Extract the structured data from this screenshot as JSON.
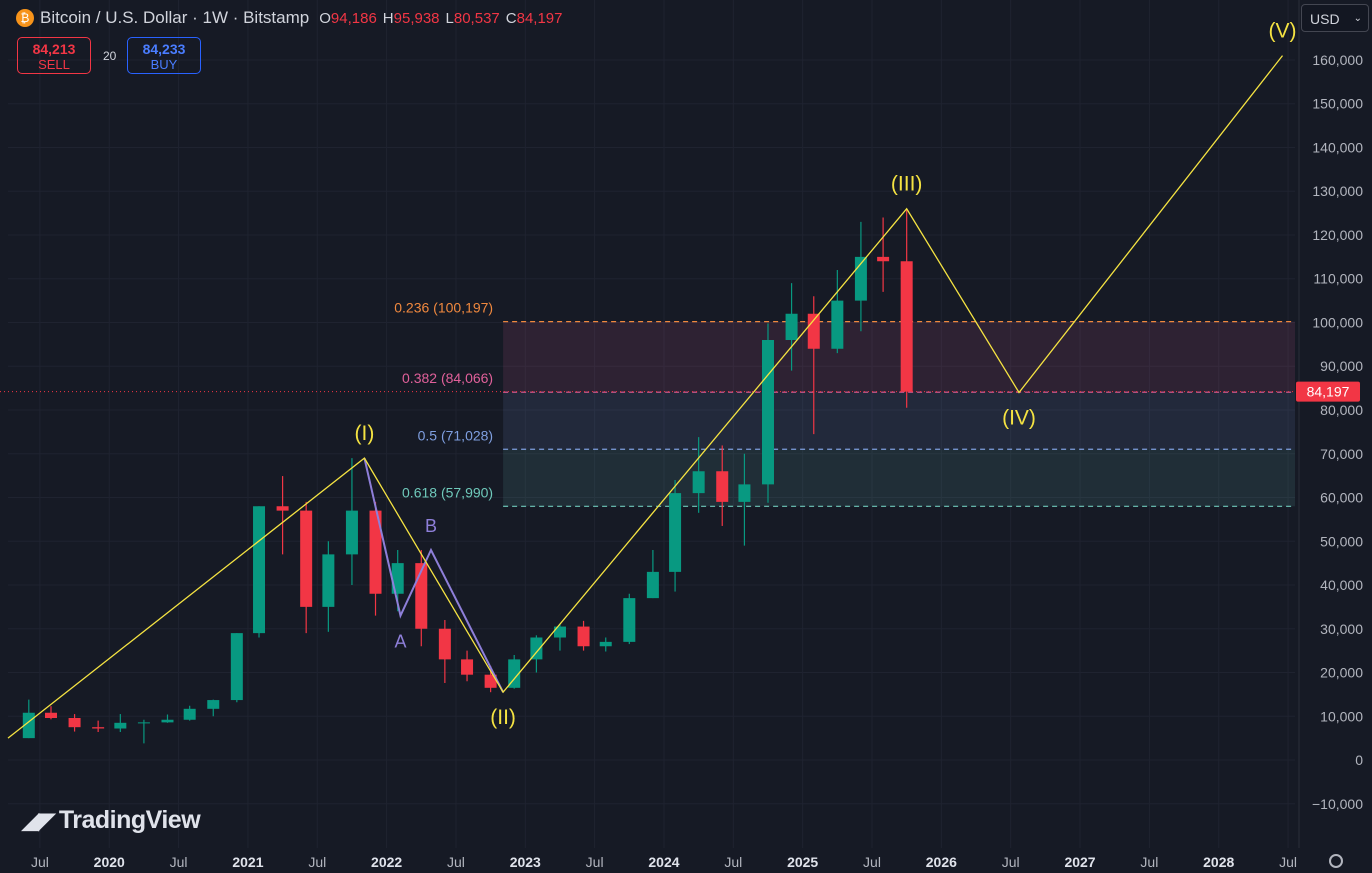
{
  "chart_data": {
    "type": "candlestick",
    "title": "Bitcoin / U.S. Dollar · 1W · Bitstamp",
    "ohlc": [
      {
        "label": "O",
        "value": "94,186"
      },
      {
        "label": "H",
        "value": "95,938"
      },
      {
        "label": "L",
        "value": "80,537"
      },
      {
        "label": "C",
        "value": "84,197"
      }
    ],
    "sell": {
      "price": "84,213",
      "label": "SELL"
    },
    "spread": "20",
    "buy": {
      "price": "84,233",
      "label": "BUY"
    },
    "currency": "USD",
    "brand": "TradingView",
    "up_color": "#089981",
    "down_color": "#f23645",
    "xlim": [
      2019.27,
      2028.55
    ],
    "ylim": [
      -20114,
      173714
    ],
    "xticks": [
      {
        "value": 2019.5,
        "label": "Jul"
      },
      2020,
      {
        "value": 2020.5,
        "label": "Jul"
      },
      2021,
      {
        "value": 2021.5,
        "label": "Jul"
      },
      2022,
      {
        "value": 2022.5,
        "label": "Jul"
      },
      2023,
      {
        "value": 2023.5,
        "label": "Jul"
      },
      2024,
      {
        "value": 2024.5,
        "label": "Jul"
      },
      2025,
      {
        "value": 2025.5,
        "label": "Jul"
      },
      2026,
      {
        "value": 2026.5,
        "label": "Jul"
      },
      2027,
      {
        "value": 2027.5,
        "label": "Jul"
      },
      2028,
      {
        "value": 2028.5,
        "label": "Jul"
      }
    ],
    "yticks": [
      {
        "value": -10000,
        "label": "−10,000"
      },
      0,
      {
        "value": 10000,
        "label": "10,000"
      },
      {
        "value": 20000,
        "label": "20,000"
      },
      {
        "value": 30000,
        "label": "30,000"
      },
      {
        "value": 40000,
        "label": "40,000"
      },
      {
        "value": 50000,
        "label": "50,000"
      },
      {
        "value": 60000,
        "label": "60,000"
      },
      {
        "value": 70000,
        "label": "70,000"
      },
      {
        "value": 80000,
        "label": "80,000"
      },
      {
        "value": 90000,
        "label": "90,000"
      },
      {
        "value": 100000,
        "label": "100,000"
      },
      {
        "value": 110000,
        "label": "110,000"
      },
      {
        "value": 120000,
        "label": "120,000"
      },
      {
        "value": 130000,
        "label": "130,000"
      },
      {
        "value": 140000,
        "label": "140,000"
      },
      {
        "value": 150000,
        "label": "150,000"
      },
      {
        "value": 160000,
        "label": "160,000"
      }
    ],
    "grid": true,
    "x": [
      2019.42,
      2019.58,
      2019.75,
      2019.92,
      2020.08,
      2020.25,
      2020.42,
      2020.58,
      2020.75,
      2020.92,
      2021.08,
      2021.25,
      2021.42,
      2021.58,
      2021.75,
      2021.92,
      2022.08,
      2022.25,
      2022.42,
      2022.58,
      2022.75,
      2022.92,
      2023.08,
      2023.25,
      2023.42,
      2023.58,
      2023.75,
      2023.92,
      2024.08,
      2024.25,
      2024.42,
      2024.58,
      2024.75,
      2024.92,
      2025.08,
      2025.25,
      2025.42,
      2025.58,
      2025.75
    ],
    "open": [
      5000,
      10800,
      9600,
      7500,
      7200,
      8500,
      8600,
      9200,
      11700,
      13700,
      29000,
      58000,
      57000,
      35000,
      47000,
      57000,
      38000,
      45000,
      30000,
      23000,
      19500,
      16500,
      23000,
      28000,
      30500,
      26000,
      27000,
      37000,
      43000,
      61000,
      66000,
      59000,
      63000,
      96000,
      102000,
      94000,
      105000,
      115000,
      114000
    ],
    "high": [
      13800,
      12300,
      10500,
      9000,
      10500,
      9200,
      10400,
      12400,
      13800,
      29000,
      58000,
      64900,
      59000,
      50000,
      69000,
      59000,
      48000,
      48000,
      32000,
      25000,
      21500,
      24000,
      28500,
      31000,
      31800,
      28000,
      38000,
      48000,
      64000,
      73800,
      71900,
      70000,
      99800,
      109000,
      106000,
      112000,
      123000,
      124000,
      126000
    ],
    "low": [
      5000,
      9300,
      6500,
      6400,
      6400,
      3800,
      8500,
      9000,
      10000,
      13200,
      28000,
      47000,
      29000,
      29300,
      40000,
      33000,
      34000,
      26000,
      17600,
      18000,
      15500,
      16300,
      20000,
      25000,
      25000,
      24800,
      26500,
      37000,
      38500,
      56500,
      53500,
      49000,
      58800,
      89000,
      74500,
      93000,
      98000,
      107000,
      80500
    ],
    "close": [
      10800,
      9600,
      7500,
      7200,
      8500,
      8600,
      9200,
      11700,
      13700,
      29000,
      58000,
      57000,
      35000,
      47000,
      57000,
      38000,
      45000,
      30000,
      23000,
      19500,
      16500,
      23000,
      28000,
      30500,
      26000,
      27000,
      37000,
      43000,
      61000,
      66000,
      59000,
      63000,
      96000,
      102000,
      94000,
      105000,
      115000,
      114000,
      84197
    ],
    "last_price": {
      "value": 84197,
      "label": "84,197",
      "color": "#f23645"
    },
    "waves": {
      "color": "#f5e342",
      "points": [
        {
          "x": 2019.27,
          "y": 5000
        },
        {
          "x": 2021.84,
          "y": 69000,
          "label": "(I)"
        },
        {
          "x": 2022.84,
          "y": 15500,
          "label": "(II)"
        },
        {
          "x": 2025.75,
          "y": 126000,
          "label": "(III)"
        },
        {
          "x": 2026.56,
          "y": 84000,
          "label": "(IV)"
        },
        {
          "x": 2028.46,
          "y": 161000,
          "label": "(V)"
        }
      ]
    },
    "abc": {
      "color": "#8e7fd9",
      "points": [
        {
          "x": 2021.84,
          "y": 69000
        },
        {
          "x": 2022.1,
          "y": 33000,
          "label": "A"
        },
        {
          "x": 2022.32,
          "y": 48000,
          "label": "B"
        },
        {
          "x": 2022.84,
          "y": 15500
        }
      ]
    },
    "fib": {
      "x_start": 2022.84,
      "levels": [
        {
          "label": "0.236 (100,197)",
          "value": 100197,
          "color": "#f0883e"
        },
        {
          "label": "0.382 (84,066)",
          "value": 84066,
          "color": "#e0609a"
        },
        {
          "label": "0.5 (71,028)",
          "value": 71028,
          "color": "#7f9fe0"
        },
        {
          "label": "0.618 (57,990)",
          "value": 57990,
          "color": "#6fc9bb"
        }
      ]
    }
  }
}
